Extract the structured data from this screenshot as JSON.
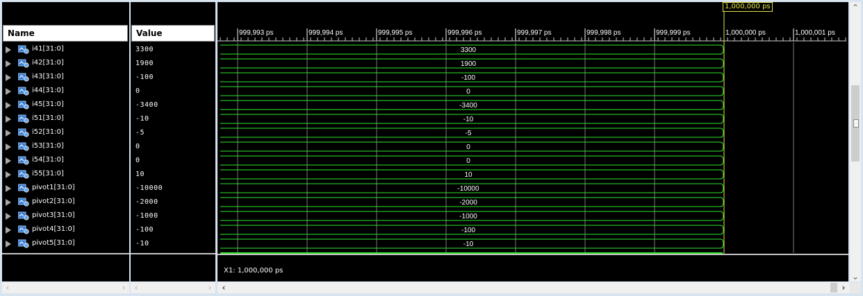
{
  "columns": {
    "name_header": "Name",
    "value_header": "Value"
  },
  "signals": [
    {
      "name": "i41[31:0]",
      "value": "3300"
    },
    {
      "name": "i42[31:0]",
      "value": "1900"
    },
    {
      "name": "i43[31:0]",
      "value": "-100"
    },
    {
      "name": "i44[31:0]",
      "value": "0"
    },
    {
      "name": "i45[31:0]",
      "value": "-3400"
    },
    {
      "name": "i51[31:0]",
      "value": "-10"
    },
    {
      "name": "i52[31:0]",
      "value": "-5"
    },
    {
      "name": "i53[31:0]",
      "value": "0"
    },
    {
      "name": "i54[31:0]",
      "value": "0"
    },
    {
      "name": "i55[31:0]",
      "value": "10"
    },
    {
      "name": "pivot1[31:0]",
      "value": "-10000"
    },
    {
      "name": "pivot2[31:0]",
      "value": "-2000"
    },
    {
      "name": "pivot3[31:0]",
      "value": "-1000"
    },
    {
      "name": "pivot4[31:0]",
      "value": "-100"
    },
    {
      "name": "pivot5[31:0]",
      "value": "-10"
    }
  ],
  "timeline": {
    "ticks": [
      "999,993 ps",
      "999,994 ps",
      "999,995 ps",
      "999,996 ps",
      "999,997 ps",
      "999,998 ps",
      "999,999 ps",
      "1,000,000 ps",
      "1,000,001 ps"
    ],
    "cursor_label": "1,000,000 ps",
    "cursor_readout": "X1: 1,000,000 ps"
  },
  "colors": {
    "wave": "#2ee82e",
    "cursor": "#e8e840",
    "grid": "#7a7a7a"
  },
  "icons": {
    "expand": "expand-triangle-icon",
    "bus": "bus-signal-icon"
  }
}
